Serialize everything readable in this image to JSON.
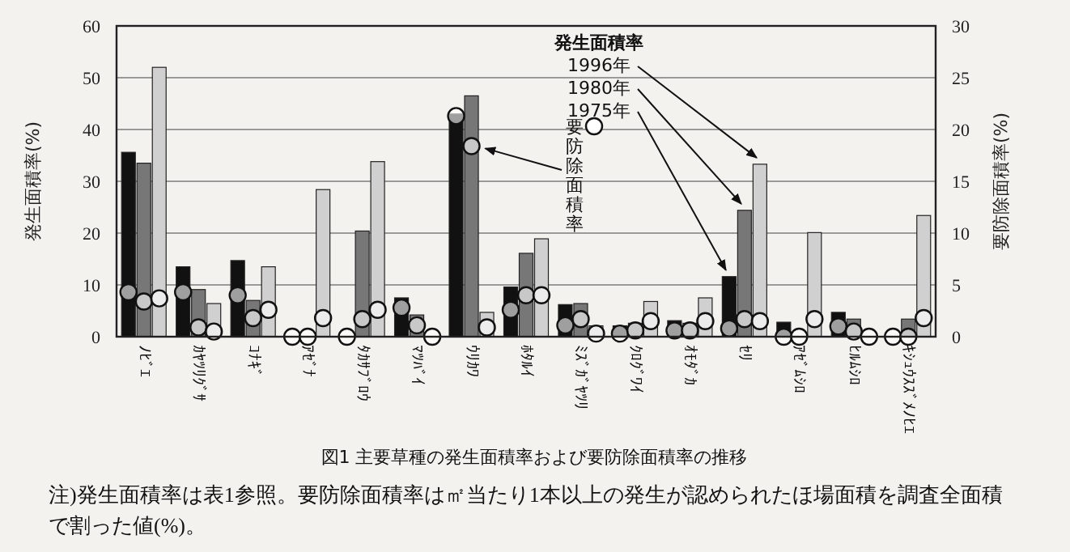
{
  "chart_data": {
    "type": "bar",
    "title": "図1 主要草種の発生面積率および要防除面積率の推移",
    "categories": [
      "ﾉﾋﾞｴ",
      "ｶﾔﾂﾘｸﾞｻ",
      "ｺﾅｷﾞ",
      "ｱｾﾞﾅ",
      "ﾀｶｻﾌﾞﾛｳ",
      "ﾏﾂﾊﾞｲ",
      "ｳﾘｶﾜ",
      "ﾎﾀﾙｲ",
      "ﾐｽﾞｶﾞﾔﾂﾘ",
      "ｸﾛｸﾞﾜｲ",
      "ｵﾓﾀﾞｶ",
      "ｾﾘ",
      "ｱｾﾞﾑｼﾛ",
      "ﾋﾙﾑｼﾛ",
      "ｷｼｭｳｽｽﾞﾒﾉﾋｴ"
    ],
    "ylabel": "発生面積率(%)",
    "y2label": "要防除面積率(%)",
    "legend_title": "発生面積率",
    "legend": "top right",
    "grid": "y",
    "ylim": [
      0,
      60
    ],
    "yticks": [
      0,
      10,
      20,
      30,
      40,
      50,
      60
    ],
    "y2lim": [
      0,
      30
    ],
    "y2ticks": [
      0,
      5,
      10,
      15,
      20,
      25,
      30
    ],
    "series": [
      {
        "name": "1975年",
        "color": "#111111",
        "values": [
          35.6,
          13.5,
          14.7,
          0,
          0,
          7.5,
          43,
          9.6,
          6.2,
          2.1,
          3.1,
          11.6,
          2.8,
          4.7,
          0
        ]
      },
      {
        "name": "1980年",
        "color": "#777777",
        "values": [
          33.5,
          9.1,
          7,
          0,
          20.4,
          4.2,
          46.5,
          16.1,
          6.4,
          2.6,
          2.6,
          24.4,
          0,
          3.4,
          3.4
        ]
      },
      {
        "name": "1996年",
        "color": "#d0d0d0",
        "values": [
          52,
          6.4,
          13.5,
          28.4,
          33.8,
          0,
          4.7,
          18.9,
          2.1,
          6.8,
          7.5,
          33.3,
          20.1,
          0,
          23.4
        ]
      },
      {
        "name": "要防除面積率",
        "type": "scatter",
        "axis": "y2",
        "marker": "circle",
        "color": "#ffffff",
        "values": [
          4.3,
          4.3,
          4.0,
          0,
          0,
          2.8,
          21.3,
          2.6,
          1.1,
          0.3,
          0.6,
          0.8,
          0,
          1.0,
          0
        ]
      },
      {
        "type": "scatter",
        "axis": "y2",
        "marker": "circle",
        "color": "#ffffff",
        "values": [
          3.4,
          0.9,
          1.8,
          0,
          1.7,
          1.1,
          18.4,
          4,
          1.7,
          0.6,
          0.6,
          1.7,
          0,
          0.5,
          0
        ]
      },
      {
        "type": "scatter",
        "axis": "y2",
        "marker": "circle",
        "color": "#ffffff",
        "values": [
          3.7,
          0.5,
          2.6,
          1.8,
          2.6,
          0,
          0.9,
          4,
          0.3,
          1.5,
          1.5,
          1.5,
          1.7,
          0,
          1.8
        ]
      }
    ],
    "annotations": [
      "注)発生面積率は表1参照。要防除面積率は㎡当たり1本以上の発生が認められたほ場面積を調査全面積で割った値(%)。"
    ]
  }
}
